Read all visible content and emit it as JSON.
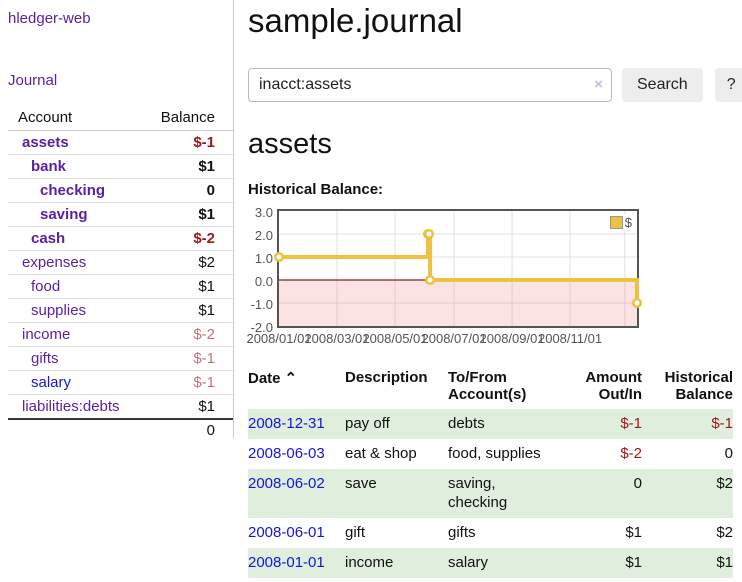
{
  "sidebar": {
    "brand": "hledger-web",
    "nav_journal": "Journal",
    "accounts_table": {
      "headers": [
        "Account",
        "Balance"
      ],
      "rows": [
        {
          "name": "assets",
          "indent": 1,
          "bold": true,
          "balance": "$-1",
          "balance_class": "neg"
        },
        {
          "name": "bank",
          "indent": 2,
          "bold": true,
          "balance": "$1",
          "balance_class": "pos"
        },
        {
          "name": "checking",
          "indent": 3,
          "bold": true,
          "balance": "0",
          "balance_class": "pos"
        },
        {
          "name": "saving",
          "indent": 3,
          "bold": true,
          "balance": "$1",
          "balance_class": "pos"
        },
        {
          "name": "cash",
          "indent": 2,
          "bold": true,
          "balance": "$-2",
          "balance_class": "neg"
        },
        {
          "name": "expenses",
          "indent": 1,
          "bold": false,
          "balance": "$2",
          "balance_class": "pos"
        },
        {
          "name": "food",
          "indent": 2,
          "bold": false,
          "balance": "$1",
          "balance_class": "pos"
        },
        {
          "name": "supplies",
          "indent": 2,
          "bold": false,
          "balance": "$1",
          "balance_class": "pos"
        },
        {
          "name": "income",
          "indent": 1,
          "bold": false,
          "balance": "$-2",
          "balance_class": "neg-muted"
        },
        {
          "name": "gifts",
          "indent": 2,
          "bold": false,
          "balance": "$-1",
          "balance_class": "neg-muted"
        },
        {
          "name": "salary",
          "indent": 2,
          "bold": false,
          "link_color": "blue",
          "balance": "$-1",
          "balance_class": "neg-muted"
        },
        {
          "name": "liabilities:debts",
          "indent": 1,
          "bold": false,
          "balance": "$1",
          "balance_class": "pos"
        }
      ],
      "total": "0"
    }
  },
  "header": {
    "title": "sample.journal"
  },
  "search": {
    "query": "inacct:assets",
    "clear_icon": "×",
    "search_label": "Search",
    "help_label": "?"
  },
  "account_page": {
    "heading": "assets"
  },
  "chart_data": {
    "type": "line",
    "title": "Historical Balance:",
    "step": true,
    "ylim": [
      -2,
      3
    ],
    "yticks": [
      "3.0",
      "2.0",
      "1.0",
      "0.0",
      "-1.0",
      "-2.0"
    ],
    "xticks": [
      {
        "label": "2008/01/01",
        "x_pct": 0
      },
      {
        "label": "2008/03/01",
        "x_pct": 16.2
      },
      {
        "label": "2008/05/01",
        "x_pct": 32.4
      },
      {
        "label": "2008/07/01",
        "x_pct": 48.9
      },
      {
        "label": "2008/09/01",
        "x_pct": 65.1
      },
      {
        "label": "2008/11/01",
        "x_pct": 81.3
      }
    ],
    "extra_gridline_pct": 96.6,
    "series": [
      {
        "name": "$",
        "color": "#edc240",
        "points": [
          {
            "date": "2008-01-01",
            "value": 1,
            "x_pct": 0
          },
          {
            "date": "2008-06-01",
            "value": 2,
            "x_pct": 41.6
          },
          {
            "date": "2008-06-02",
            "value": 2,
            "x_pct": 41.9
          },
          {
            "date": "2008-06-03",
            "value": 0,
            "x_pct": 42.2
          },
          {
            "date": "2008-12-31",
            "value": -1,
            "x_pct": 100
          }
        ]
      }
    ],
    "grid": true,
    "grid_color": "#e0e0e0",
    "negative_region_color": "rgba(240,100,100,0.18)",
    "zero_line_color": "#8e1d1d",
    "legend": {
      "position": "top-right",
      "label": "$",
      "swatch_color": "#edc240"
    }
  },
  "register": {
    "columns": [
      {
        "label": "Date",
        "sort_indicator": "⌃",
        "align": "left"
      },
      {
        "label": "Description",
        "align": "left"
      },
      {
        "label": "To/From Account(s)",
        "align": "left"
      },
      {
        "label": "Amount Out/In",
        "align": "right"
      },
      {
        "label": "Historical Balance",
        "align": "right"
      }
    ],
    "rows": [
      {
        "date": "2008-12-31",
        "description": "pay off",
        "accounts": "debts",
        "amount": "$-1",
        "amount_class": "neg",
        "balance": "$-1",
        "balance_class": "neg"
      },
      {
        "date": "2008-06-03",
        "description": "eat & shop",
        "accounts": "food, supplies",
        "amount": "$-2",
        "amount_class": "neg",
        "balance": "0",
        "balance_class": "pos"
      },
      {
        "date": "2008-06-02",
        "description": "save",
        "accounts": "saving, checking",
        "amount": "0",
        "amount_class": "pos",
        "balance": "$2",
        "balance_class": "pos"
      },
      {
        "date": "2008-06-01",
        "description": "gift",
        "accounts": "gifts",
        "amount": "$1",
        "amount_class": "pos",
        "balance": "$2",
        "balance_class": "pos"
      },
      {
        "date": "2008-01-01",
        "description": "income",
        "accounts": "salary",
        "amount": "$1",
        "amount_class": "pos",
        "balance": "$1",
        "balance_class": "pos"
      }
    ]
  }
}
